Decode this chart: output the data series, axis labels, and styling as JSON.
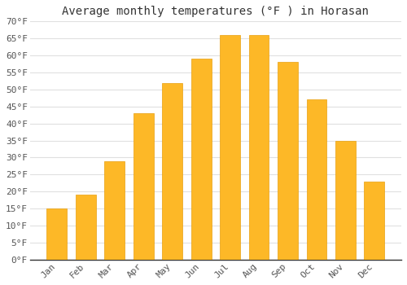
{
  "title": "Average monthly temperatures (°F ) in Horasan",
  "months": [
    "Jan",
    "Feb",
    "Mar",
    "Apr",
    "May",
    "Jun",
    "Jul",
    "Aug",
    "Sep",
    "Oct",
    "Nov",
    "Dec"
  ],
  "values": [
    15,
    19,
    29,
    43,
    52,
    59,
    66,
    66,
    58,
    47,
    35,
    23
  ],
  "bar_color": "#FDB827",
  "bar_edge_color": "#E8A010",
  "background_color": "#ffffff",
  "grid_color": "#e0e0e0",
  "ylim": [
    0,
    70
  ],
  "yticks": [
    0,
    5,
    10,
    15,
    20,
    25,
    30,
    35,
    40,
    45,
    50,
    55,
    60,
    65,
    70
  ],
  "ylabel_suffix": "°F",
  "title_fontsize": 10,
  "tick_fontsize": 8,
  "font_family": "monospace"
}
